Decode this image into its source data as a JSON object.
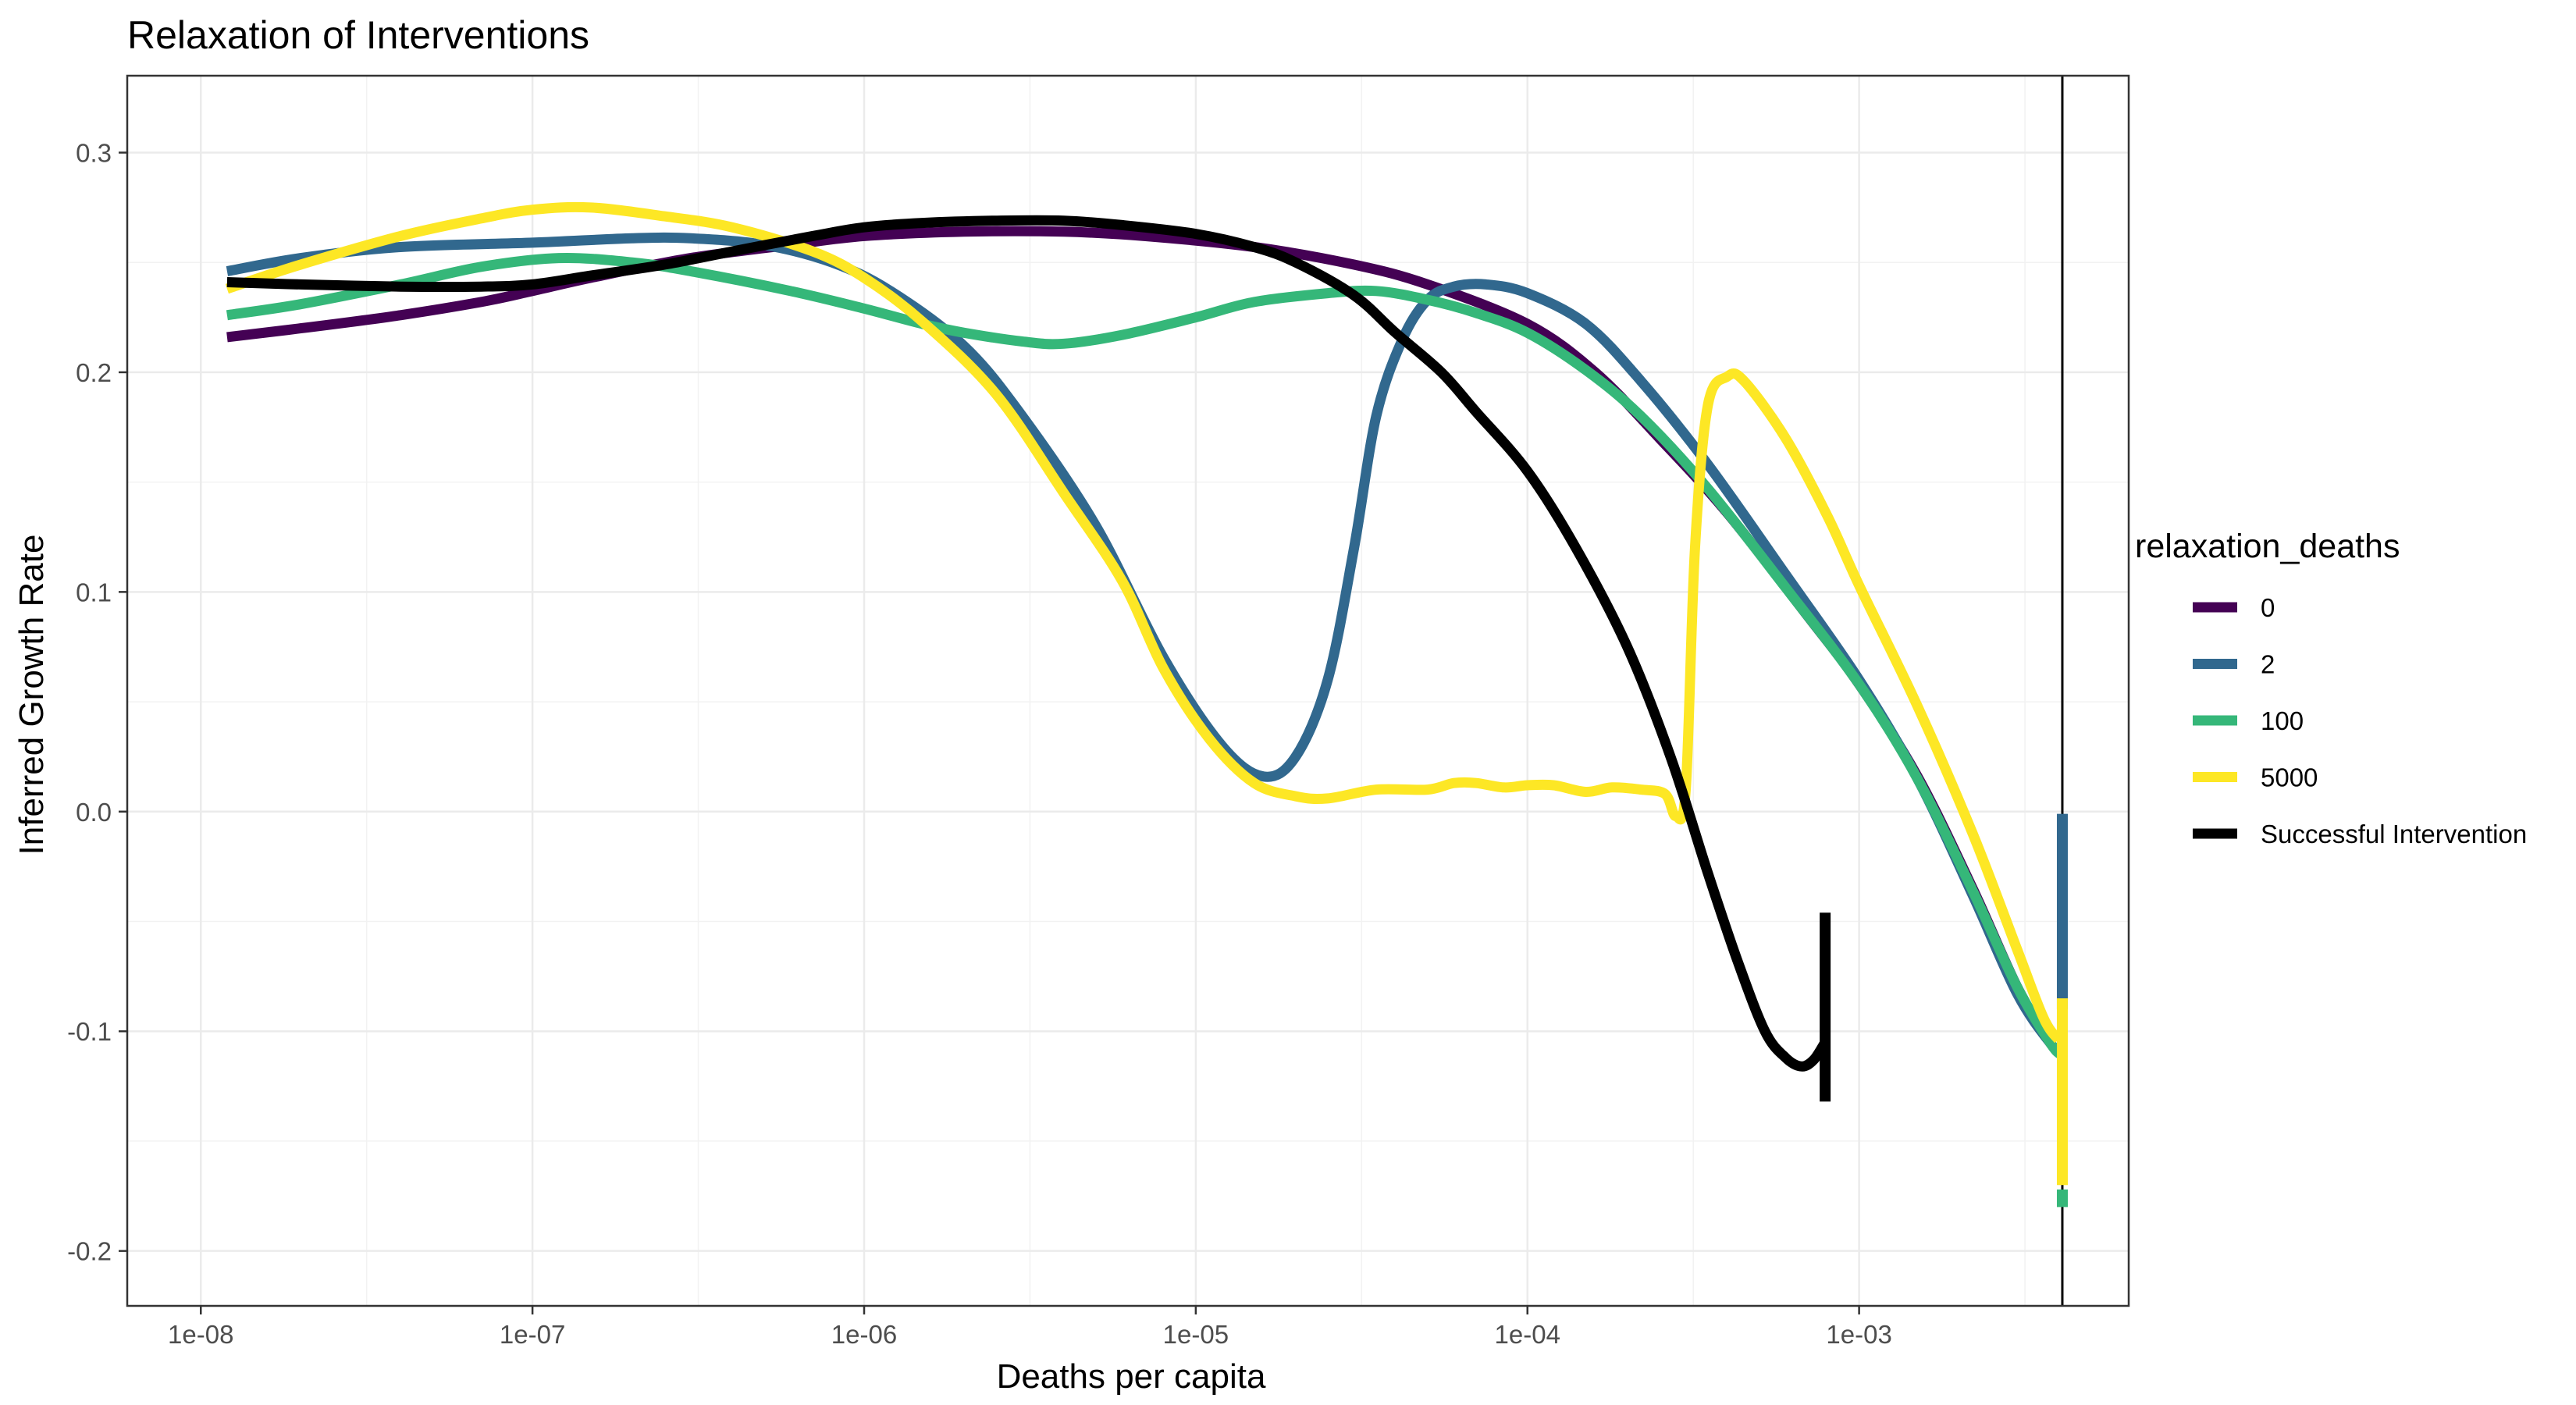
{
  "chart_data": {
    "type": "line",
    "title": "Relaxation of Interventions",
    "xlabel": "Deaths per capita",
    "ylabel": "Inferred Growth Rate",
    "x_scale": "log10",
    "xlim": [
      6e-09,
      0.0065
    ],
    "ylim": [
      -0.225,
      0.335
    ],
    "x_ticks": [
      1e-08,
      1e-07,
      1e-06,
      1e-05,
      0.0001,
      0.001
    ],
    "x_tick_labels": [
      "1e-08",
      "1e-07",
      "1e-06",
      "1e-05",
      "1e-04",
      "1e-03"
    ],
    "y_ticks": [
      -0.2,
      -0.1,
      0.0,
      0.1,
      0.2,
      0.3
    ],
    "y_tick_labels": [
      "-0.2",
      "-0.1",
      "0.0",
      "0.1",
      "0.2",
      "0.3"
    ],
    "grid": true,
    "legend": {
      "title": "relaxation_deaths",
      "placement": "right"
    },
    "vline": 0.0041,
    "series": [
      {
        "name": "0",
        "color": "#440154",
        "points": [
          [
            1.2e-08,
            0.216
          ],
          [
            2e-08,
            0.22
          ],
          [
            4e-08,
            0.226
          ],
          [
            7e-08,
            0.232
          ],
          [
            1e-07,
            0.237
          ],
          [
            1.5e-07,
            0.243
          ],
          [
            3e-07,
            0.252
          ],
          [
            6e-07,
            0.258
          ],
          [
            1e-06,
            0.262
          ],
          [
            2e-06,
            0.264
          ],
          [
            4e-06,
            0.264
          ],
          [
            7e-06,
            0.262
          ],
          [
            1.5e-05,
            0.257
          ],
          [
            3e-05,
            0.249
          ],
          [
            5e-05,
            0.24
          ],
          [
            0.0001,
            0.222
          ],
          [
            0.00016,
            0.2
          ],
          [
            0.00025,
            0.17
          ],
          [
            0.0004,
            0.136
          ],
          [
            0.0007,
            0.089
          ],
          [
            0.001,
            0.058
          ],
          [
            0.0015,
            0.016
          ],
          [
            0.0022,
            -0.035
          ],
          [
            0.003,
            -0.08
          ],
          [
            0.0038,
            -0.106
          ],
          [
            0.0041,
            -0.11
          ]
        ]
      },
      {
        "name": "2",
        "color": "#31688e",
        "points": [
          [
            1.2e-08,
            0.246
          ],
          [
            2e-08,
            0.252
          ],
          [
            4e-08,
            0.257
          ],
          [
            1e-07,
            0.259
          ],
          [
            2e-07,
            0.261
          ],
          [
            3e-07,
            0.261
          ],
          [
            5e-07,
            0.258
          ],
          [
            8e-07,
            0.25
          ],
          [
            1.2e-06,
            0.237
          ],
          [
            2e-06,
            0.212
          ],
          [
            3e-06,
            0.18
          ],
          [
            5e-06,
            0.13
          ],
          [
            8e-06,
            0.07
          ],
          [
            1.2e-05,
            0.03
          ],
          [
            1.6e-05,
            0.016
          ],
          [
            2e-05,
            0.025
          ],
          [
            2.5e-05,
            0.06
          ],
          [
            3e-05,
            0.12
          ],
          [
            3.5e-05,
            0.18
          ],
          [
            4.2e-05,
            0.215
          ],
          [
            5e-05,
            0.233
          ],
          [
            6e-05,
            0.239
          ],
          [
            7.5e-05,
            0.24
          ],
          [
            0.0001,
            0.236
          ],
          [
            0.00015,
            0.222
          ],
          [
            0.00022,
            0.196
          ],
          [
            0.00035,
            0.158
          ],
          [
            0.0006,
            0.108
          ],
          [
            0.001,
            0.06
          ],
          [
            0.0015,
            0.015
          ],
          [
            0.0022,
            -0.038
          ],
          [
            0.003,
            -0.083
          ],
          [
            0.0038,
            -0.106
          ],
          [
            0.0041,
            -0.11
          ]
        ]
      },
      {
        "name": "100",
        "color": "#35b779",
        "points": [
          [
            1.2e-08,
            0.226
          ],
          [
            2e-08,
            0.231
          ],
          [
            4e-08,
            0.24
          ],
          [
            7e-08,
            0.248
          ],
          [
            1.2e-07,
            0.252
          ],
          [
            2e-07,
            0.25
          ],
          [
            3e-07,
            0.246
          ],
          [
            6e-07,
            0.237
          ],
          [
            1e-06,
            0.229
          ],
          [
            1.5e-06,
            0.222
          ],
          [
            2e-06,
            0.218
          ],
          [
            3e-06,
            0.214
          ],
          [
            4e-06,
            0.213
          ],
          [
            6e-06,
            0.217
          ],
          [
            1e-05,
            0.225
          ],
          [
            1.5e-05,
            0.232
          ],
          [
            2.5e-05,
            0.236
          ],
          [
            3.5e-05,
            0.237
          ],
          [
            5e-05,
            0.233
          ],
          [
            7e-05,
            0.227
          ],
          [
            0.0001,
            0.218
          ],
          [
            0.00015,
            0.201
          ],
          [
            0.00022,
            0.18
          ],
          [
            0.00035,
            0.147
          ],
          [
            0.0006,
            0.102
          ],
          [
            0.001,
            0.058
          ],
          [
            0.0015,
            0.015
          ],
          [
            0.0022,
            -0.036
          ],
          [
            0.003,
            -0.08
          ],
          [
            0.0038,
            -0.106
          ],
          [
            0.0041,
            -0.111
          ]
        ]
      },
      {
        "name": "5000",
        "color": "#fde725",
        "points": [
          [
            1.2e-08,
            0.238
          ],
          [
            2e-08,
            0.249
          ],
          [
            4e-08,
            0.262
          ],
          [
            7e-08,
            0.27
          ],
          [
            1e-07,
            0.274
          ],
          [
            1.5e-07,
            0.275
          ],
          [
            2.5e-07,
            0.271
          ],
          [
            4e-07,
            0.266
          ],
          [
            7e-07,
            0.255
          ],
          [
            1e-06,
            0.243
          ],
          [
            1.5e-06,
            0.223
          ],
          [
            2.5e-06,
            0.19
          ],
          [
            4e-06,
            0.145
          ],
          [
            6e-06,
            0.105
          ],
          [
            8e-06,
            0.065
          ],
          [
            1.1e-05,
            0.033
          ],
          [
            1.5e-05,
            0.013
          ],
          [
            2e-05,
            0.007
          ],
          [
            2.5e-05,
            0.006
          ],
          [
            3.5e-05,
            0.01
          ],
          [
            5e-05,
            0.01
          ],
          [
            6e-05,
            0.013
          ],
          [
            7e-05,
            0.013
          ],
          [
            8.5e-05,
            0.011
          ],
          [
            0.0001,
            0.012
          ],
          [
            0.00012,
            0.012
          ],
          [
            0.00015,
            0.009
          ],
          [
            0.00018,
            0.011
          ],
          [
            0.00022,
            0.01
          ],
          [
            0.00026,
            0.008
          ],
          [
            0.00028,
            -0.002
          ],
          [
            0.0003,
            0.01
          ],
          [
            0.00032,
            0.12
          ],
          [
            0.00035,
            0.185
          ],
          [
            0.0004,
            0.198
          ],
          [
            0.00045,
            0.196
          ],
          [
            0.0006,
            0.17
          ],
          [
            0.0008,
            0.135
          ],
          [
            0.001,
            0.103
          ],
          [
            0.0015,
            0.048
          ],
          [
            0.0022,
            -0.01
          ],
          [
            0.003,
            -0.063
          ],
          [
            0.0036,
            -0.094
          ],
          [
            0.004,
            -0.104
          ]
        ]
      },
      {
        "name": "Successful Intervention",
        "color": "#000000",
        "points": [
          [
            1.2e-08,
            0.241
          ],
          [
            2e-08,
            0.24
          ],
          [
            4e-08,
            0.239
          ],
          [
            7e-08,
            0.239
          ],
          [
            1e-07,
            0.24
          ],
          [
            1.5e-07,
            0.244
          ],
          [
            2.5e-07,
            0.249
          ],
          [
            4e-07,
            0.255
          ],
          [
            7e-07,
            0.262
          ],
          [
            1e-06,
            0.266
          ],
          [
            1.5e-06,
            0.268
          ],
          [
            2.5e-06,
            0.269
          ],
          [
            4e-06,
            0.269
          ],
          [
            6e-06,
            0.267
          ],
          [
            1e-05,
            0.263
          ],
          [
            1.5e-05,
            0.257
          ],
          [
            2e-05,
            0.25
          ],
          [
            3e-05,
            0.235
          ],
          [
            4e-05,
            0.218
          ],
          [
            5.5e-05,
            0.2
          ],
          [
            7e-05,
            0.182
          ],
          [
            0.0001,
            0.155
          ],
          [
            0.00014,
            0.12
          ],
          [
            0.0002,
            0.075
          ],
          [
            0.00027,
            0.025
          ],
          [
            0.00035,
            -0.028
          ],
          [
            0.00043,
            -0.068
          ],
          [
            0.00052,
            -0.1
          ],
          [
            0.0006,
            -0.112
          ],
          [
            0.00067,
            -0.116
          ],
          [
            0.00073,
            -0.113
          ],
          [
            0.00079,
            -0.105
          ]
        ]
      }
    ],
    "end_segments": [
      {
        "series": "2",
        "color": "#31688e",
        "x": 0.0041,
        "y0": -0.09,
        "y1": -0.001
      },
      {
        "series": "100",
        "color": "#35b779",
        "x": 0.0041,
        "y0": -0.18,
        "y1": -0.172
      },
      {
        "series": "5000",
        "color": "#fde725",
        "x": 0.0041,
        "y0": -0.17,
        "y1": -0.085
      },
      {
        "series": "Successful Intervention",
        "color": "#000000",
        "x": 0.00079,
        "y0": -0.132,
        "y1": -0.046
      }
    ]
  }
}
